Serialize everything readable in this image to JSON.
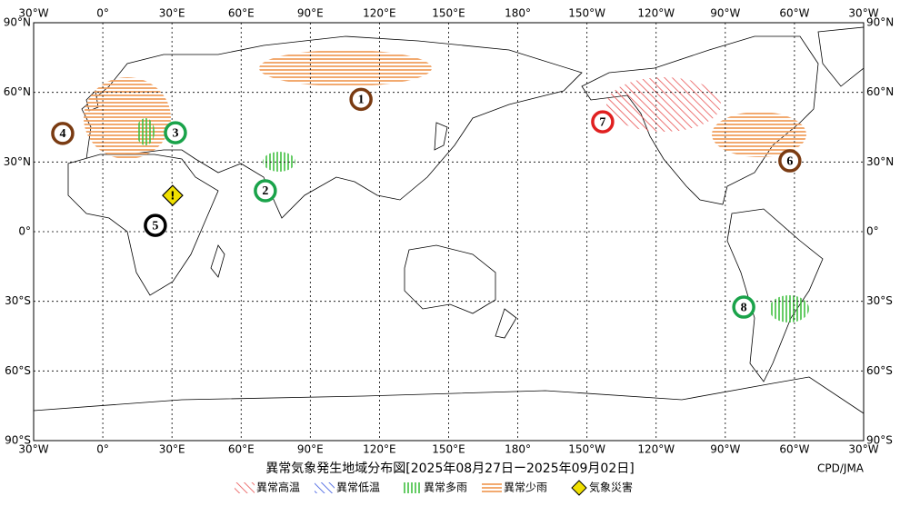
{
  "map": {
    "lon_ticks": [
      {
        "value": -30,
        "label": "30°W"
      },
      {
        "value": 0,
        "label": "0°"
      },
      {
        "value": 30,
        "label": "30°E"
      },
      {
        "value": 60,
        "label": "60°E"
      },
      {
        "value": 90,
        "label": "90°E"
      },
      {
        "value": 120,
        "label": "120°E"
      },
      {
        "value": 150,
        "label": "150°E"
      },
      {
        "value": 180,
        "label": "180°"
      },
      {
        "value": 210,
        "label": "150°W"
      },
      {
        "value": 240,
        "label": "120°W"
      },
      {
        "value": 270,
        "label": "90°W"
      },
      {
        "value": 300,
        "label": "60°W"
      },
      {
        "value": 330,
        "label": "30°W"
      }
    ],
    "lat_ticks": [
      {
        "value": 90,
        "label": "90°N"
      },
      {
        "value": 60,
        "label": "60°N"
      },
      {
        "value": 30,
        "label": "30°N"
      },
      {
        "value": 0,
        "label": "0°"
      },
      {
        "value": -30,
        "label": "30°S"
      },
      {
        "value": -60,
        "label": "60°S"
      },
      {
        "value": -90,
        "label": "90°S"
      }
    ],
    "markers": [
      {
        "label": "1",
        "lon": 112,
        "lat": 57,
        "color": "#7a3b12"
      },
      {
        "label": "2",
        "lon": 70.5,
        "lat": 17.6,
        "color": "#1aa34a"
      },
      {
        "label": "3",
        "lon": 31.5,
        "lat": 42.6,
        "color": "#1aa34a"
      },
      {
        "label": "4",
        "lon": -17.4,
        "lat": 42.3,
        "color": "#7a3b12"
      },
      {
        "label": "5",
        "lon": 22.8,
        "lat": 2.7,
        "color": "#000000"
      },
      {
        "label": "6",
        "lon": 298,
        "lat": 30.5,
        "color": "#7a3b12"
      },
      {
        "label": "7",
        "lon": 216.8,
        "lat": 47.3,
        "color": "#e02020"
      },
      {
        "label": "8",
        "lon": 278,
        "lat": -32.5,
        "color": "#1aa34a"
      }
    ],
    "disaster_markers": [
      {
        "label": "!",
        "lon": 30.3,
        "lat": 15.6
      }
    ]
  },
  "title": "異常気象発生地域分布図[2025年08月27日ー2025年09月02日]",
  "credit": "CPD/JMA",
  "legend": [
    {
      "label": "異常高温"
    },
    {
      "label": "異常低温"
    },
    {
      "label": "異常多雨"
    },
    {
      "label": "異常少雨"
    },
    {
      "label": "気象災害"
    }
  ]
}
